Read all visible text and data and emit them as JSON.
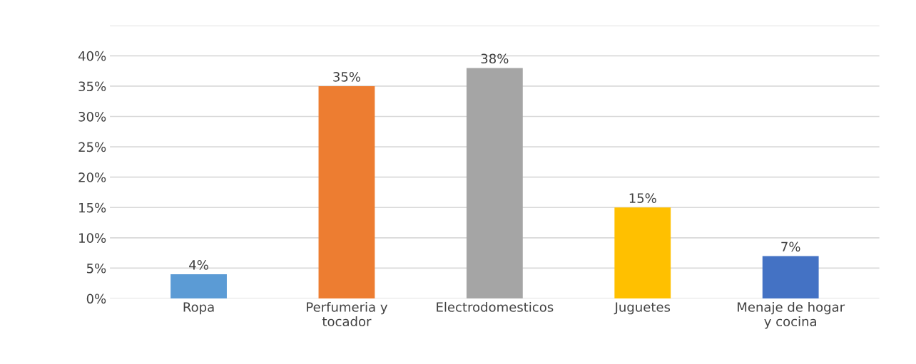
{
  "chart_data": {
    "type": "bar",
    "categories": [
      "Ropa",
      "Perfumeria y\ntocador",
      "Electrodomesticos",
      "Juguetes",
      "Menaje de hogar\ny cocina"
    ],
    "values": [
      4,
      35,
      38,
      15,
      7
    ],
    "colors": [
      "#5b9bd5",
      "#ed7d31",
      "#a5a5a5",
      "#ffc000",
      "#4472c4"
    ],
    "value_labels": [
      "4%",
      "35%",
      "38%",
      "15%",
      "7%"
    ],
    "ylim": [
      0,
      45
    ],
    "yticks": [
      {
        "value": 0,
        "label": "0%"
      },
      {
        "value": 5,
        "label": "5%"
      },
      {
        "value": 10,
        "label": "10%"
      },
      {
        "value": 15,
        "label": "15%"
      },
      {
        "value": 20,
        "label": "20%"
      },
      {
        "value": 25,
        "label": "25%"
      },
      {
        "value": 30,
        "label": "30%"
      },
      {
        "value": 35,
        "label": "35%"
      },
      {
        "value": 40,
        "label": "40%"
      },
      {
        "value": 45,
        "label": null
      }
    ],
    "grid": "y"
  }
}
